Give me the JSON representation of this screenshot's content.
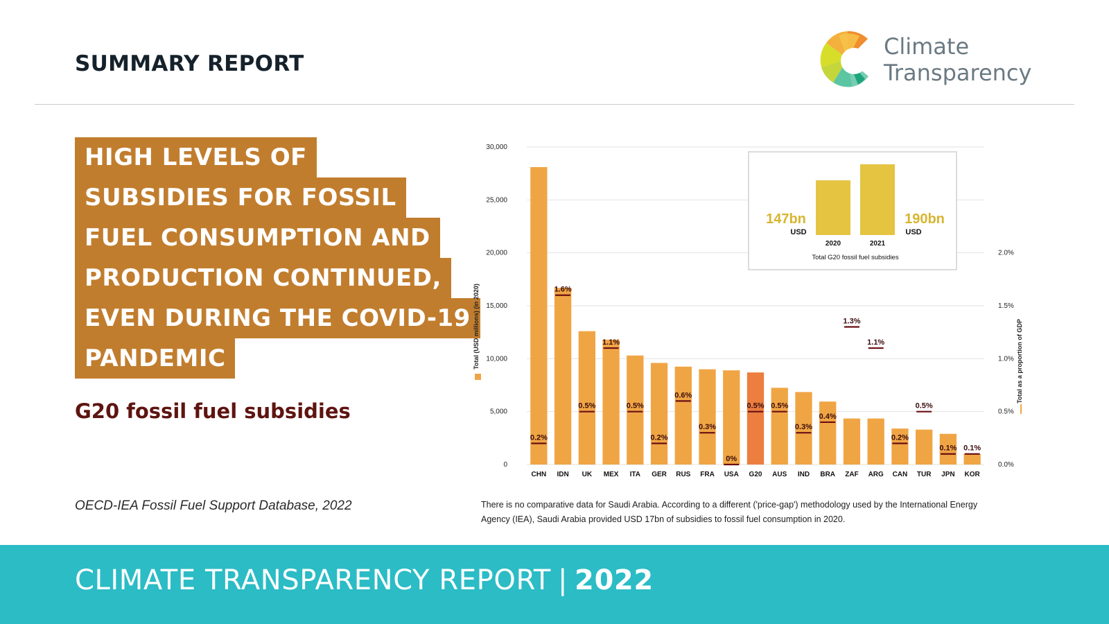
{
  "header": {
    "title": "SUMMARY REPORT"
  },
  "logo": {
    "line1": "Climate",
    "line2": "Transparency"
  },
  "headline": {
    "lines": [
      "HIGH LEVELS OF",
      "SUBSIDIES FOR FOSSIL",
      "FUEL CONSUMPTION AND",
      "PRODUCTION CONTINUED,",
      "EVEN DURING THE COVID-19",
      "PANDEMIC"
    ]
  },
  "subtitle": "G20 fossil fuel subsidies",
  "source": "OECD-IEA Fossil Fuel Support Database, 2022",
  "note": "There is no comparative data for Saudi Arabia. According to a different ('price-gap') methodology used by the International Energy Agency (IEA), Saudi Arabia provided USD 17bn of subsidies to fossil fuel consumption in 2020.",
  "footer": {
    "text": "CLIMATE TRANSPARENCY REPORT",
    "separator": "|",
    "year": "2022"
  },
  "colors": {
    "bar": "#f0a545",
    "bar_highlight": "#ec7e3f",
    "marker": "#6a0f14",
    "inset_bar": "#e5c441",
    "headline_bg": "#c17d2e",
    "footer_bg": "#2bbcc5",
    "subtitle": "#5e1410"
  },
  "chart_data": {
    "type": "bar",
    "categories": [
      "CHN",
      "IDN",
      "UK",
      "MEX",
      "ITA",
      "GER",
      "RUS",
      "FRA",
      "USA",
      "G20",
      "AUS",
      "IND",
      "BRA",
      "ZAF",
      "ARG",
      "CAN",
      "TUR",
      "JPN",
      "KOR"
    ],
    "series": [
      {
        "values": [
          28100,
          16700,
          12600,
          11800,
          10300,
          9600,
          9250,
          9000,
          8900,
          8700,
          7250,
          6850,
          5950,
          4350,
          4350,
          3400,
          3300,
          2900,
          1000
        ]
      },
      {
        "values": [
          0.2,
          1.6,
          0.5,
          1.1,
          0.5,
          0.2,
          0.6,
          0.3,
          0.0,
          0.5,
          0.5,
          0.3,
          0.4,
          1.3,
          1.1,
          0.2,
          0.5,
          0.1,
          0.1
        ],
        "labels": [
          "0.2%",
          "1.6%",
          "0.5%",
          "1.1%",
          "0.5%",
          "0.2%",
          "0.6%",
          "0.3%",
          "0%",
          "0.5%",
          "0.5%",
          "0.3%",
          "0.4%",
          "1.3%",
          "1.1%",
          "0.2%",
          "0.5%",
          "0.1%",
          "0.1%"
        ]
      }
    ],
    "highlight": "G20",
    "ylabel": "Total (USD millions) (in 2020)",
    "y2label": "Total as a proportion of GDP",
    "ylim": [
      0,
      30000
    ],
    "yticks": [
      "0",
      "5,000",
      "10,000",
      "15,000",
      "20,000",
      "25,000",
      "30,000"
    ],
    "y2lim": [
      0,
      3.0
    ],
    "y2ticks": [
      "0.0%",
      "0.5%",
      "1.0%",
      "1.5%",
      "2.0%"
    ],
    "grid": true,
    "inset": {
      "type": "bar",
      "title": "Total G20 fossil fuel subsidies",
      "categories": [
        "2020",
        "2021"
      ],
      "values": [
        147,
        190
      ],
      "value_labels": [
        "147bn",
        "190bn"
      ],
      "unit": "USD"
    }
  }
}
